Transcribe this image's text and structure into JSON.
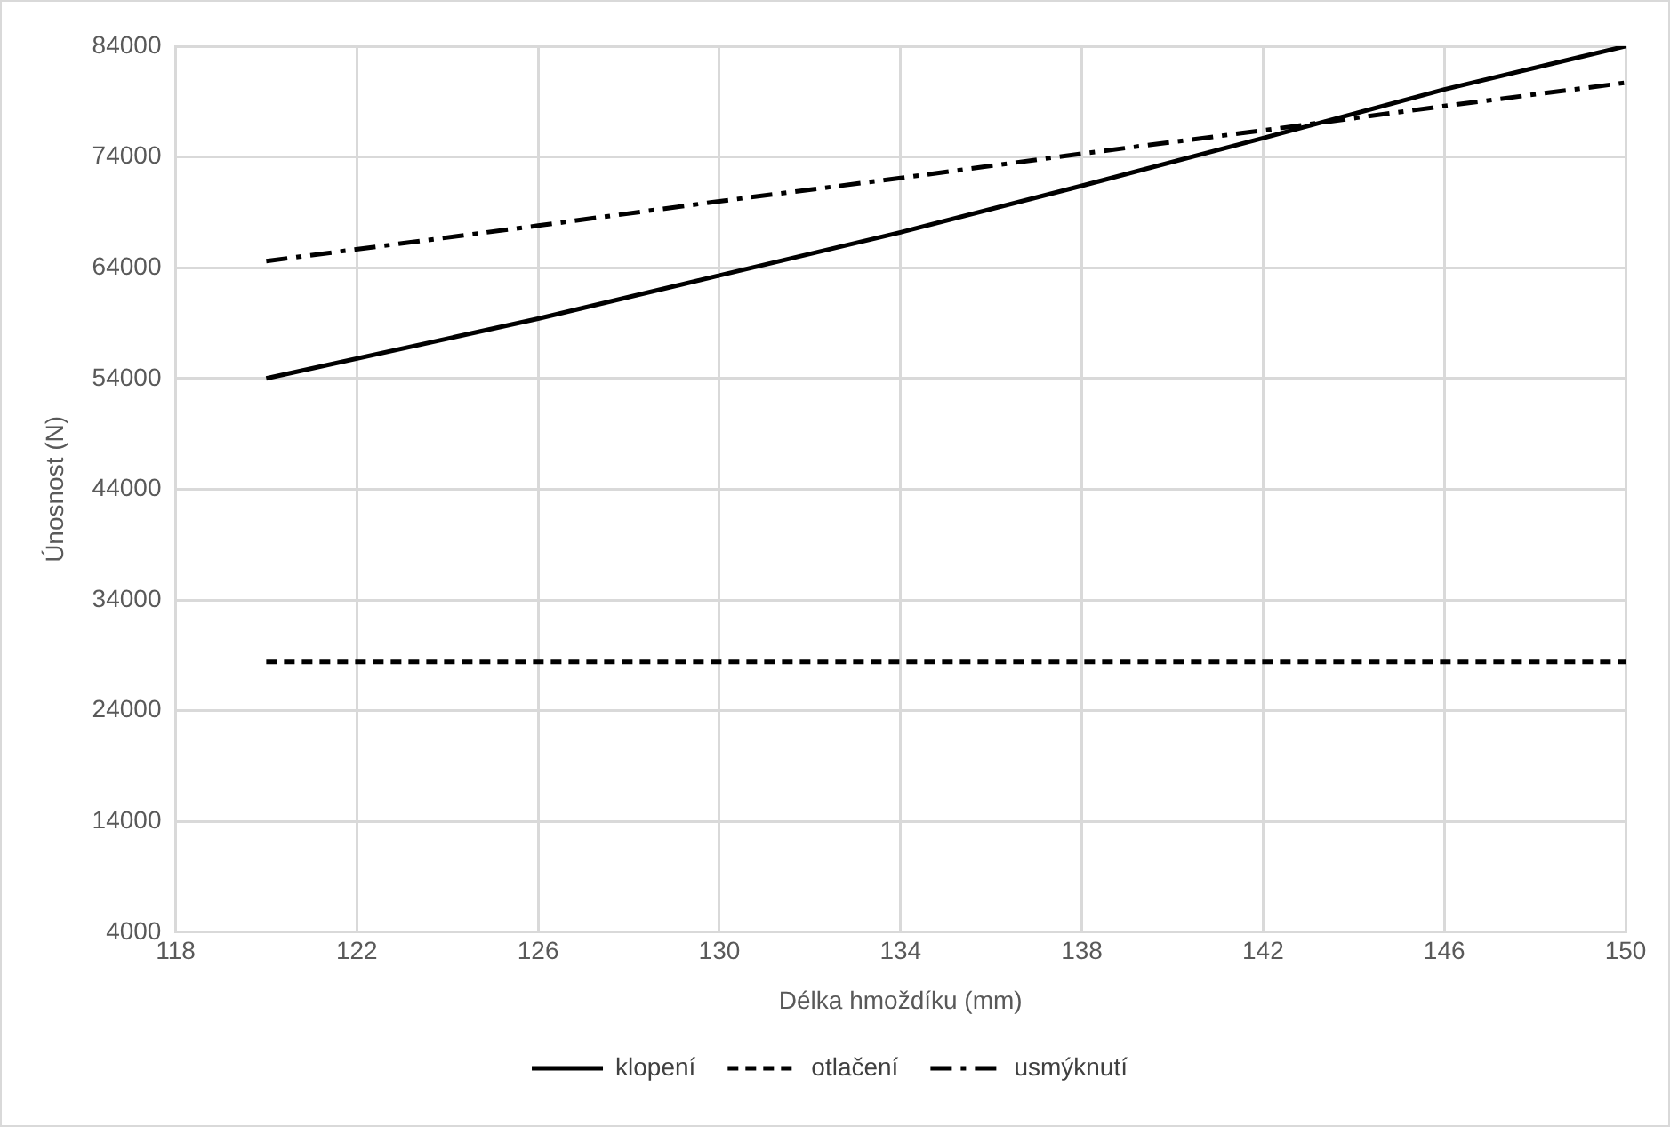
{
  "chart_data": {
    "type": "line",
    "xlabel": "Délka hmoždíku (mm)",
    "ylabel": "Únosnost (N)",
    "x": [
      120,
      126,
      130,
      134,
      138,
      142,
      146,
      150
    ],
    "series": [
      {
        "name": "klopení",
        "color": "#000000",
        "line_style": "solid",
        "values": [
          54000,
          59400,
          63300,
          67200,
          71400,
          75700,
          80100,
          84000
        ]
      },
      {
        "name": "otlačení",
        "color": "#000000",
        "line_style": "dashed",
        "values": [
          28400,
          28400,
          28400,
          28400,
          28400,
          28400,
          28400,
          28400
        ]
      },
      {
        "name": "usmýknutí",
        "color": "#000000",
        "line_style": "dashdot",
        "values": [
          64600,
          67800,
          70000,
          72100,
          74300,
          76400,
          78600,
          80700
        ]
      }
    ],
    "xlim": [
      118,
      150
    ],
    "xticks": [
      118,
      122,
      126,
      130,
      134,
      138,
      142,
      146,
      150
    ],
    "ylim": [
      4000,
      84000
    ],
    "yticks": [
      4000,
      14000,
      24000,
      34000,
      44000,
      54000,
      64000,
      74000,
      84000
    ],
    "grid": true,
    "legend": "bottom",
    "marker": "none"
  }
}
